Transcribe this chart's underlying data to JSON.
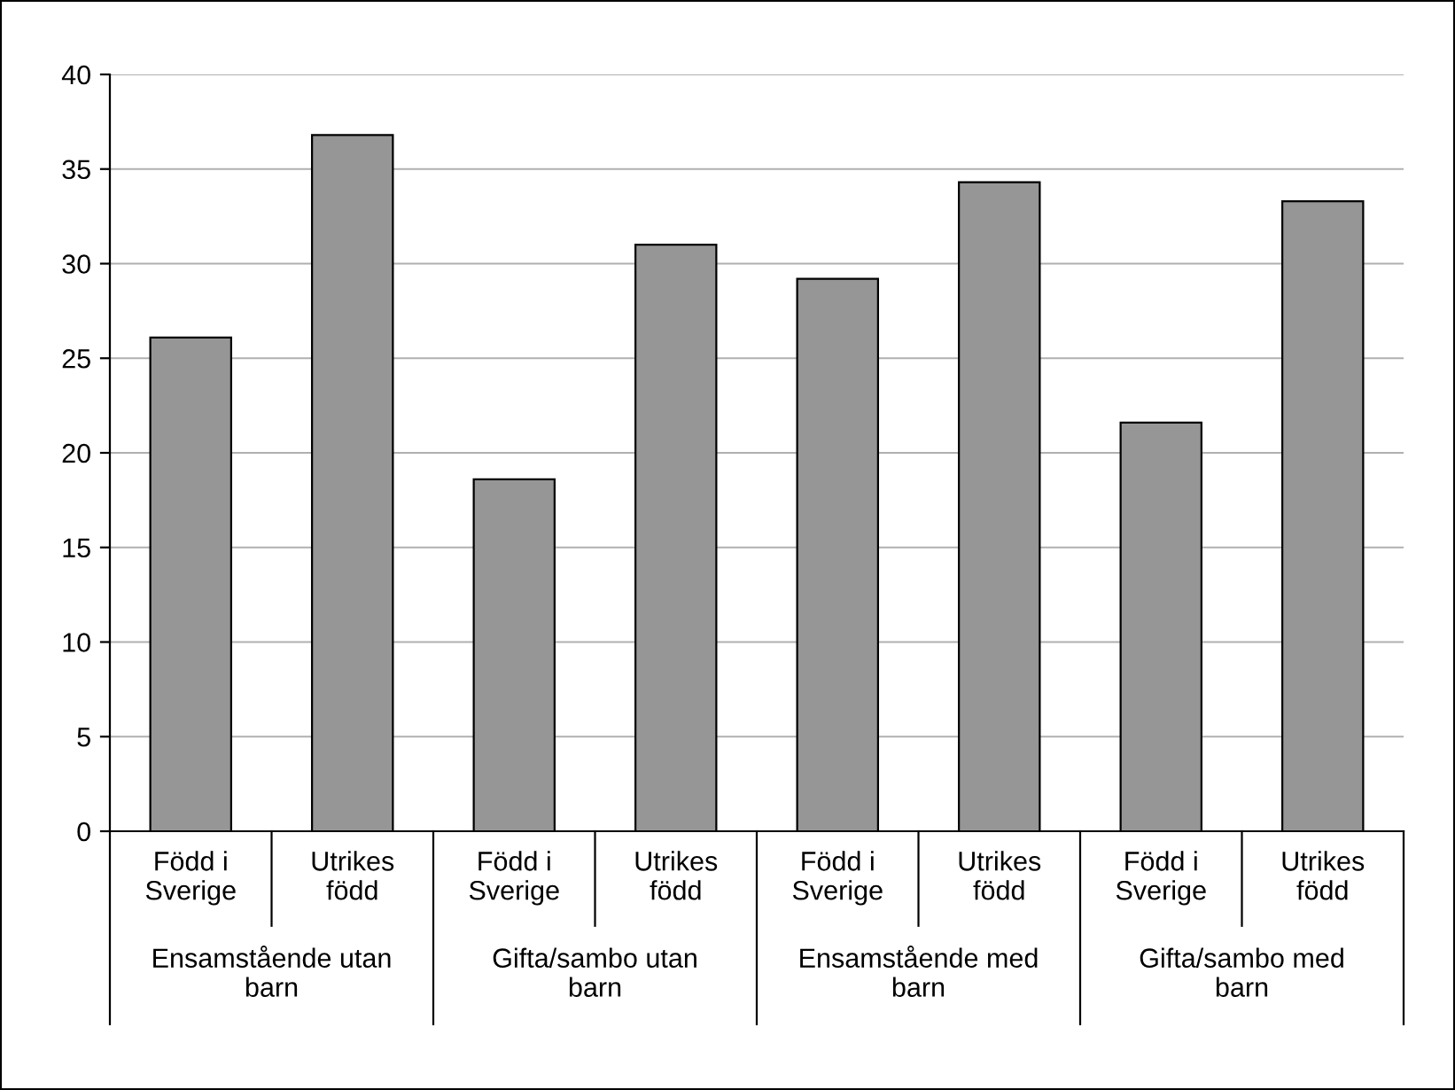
{
  "chart_data": {
    "type": "bar",
    "categories": [
      "Född i\nSverige",
      "Utrikes\nfödd",
      "Född i\nSverige",
      "Utrikes\nfödd",
      "Född i\nSverige",
      "Utrikes\nfödd",
      "Född i\nSverige",
      "Utrikes\nfödd"
    ],
    "values": [
      26.1,
      36.8,
      18.6,
      31.0,
      29.2,
      34.3,
      21.6,
      33.3
    ],
    "color": "#969696",
    "annotations": [
      "Ensamstående utan\nbarn",
      "Gifta/sambo utan\nbarn",
      "Ensamstående med\nbarn",
      "Gifta/sambo med\nbarn"
    ],
    "ylim": [
      0,
      40
    ],
    "yticks": [
      0,
      5,
      10,
      15,
      20,
      25,
      30,
      35,
      40
    ],
    "grid": "y"
  }
}
